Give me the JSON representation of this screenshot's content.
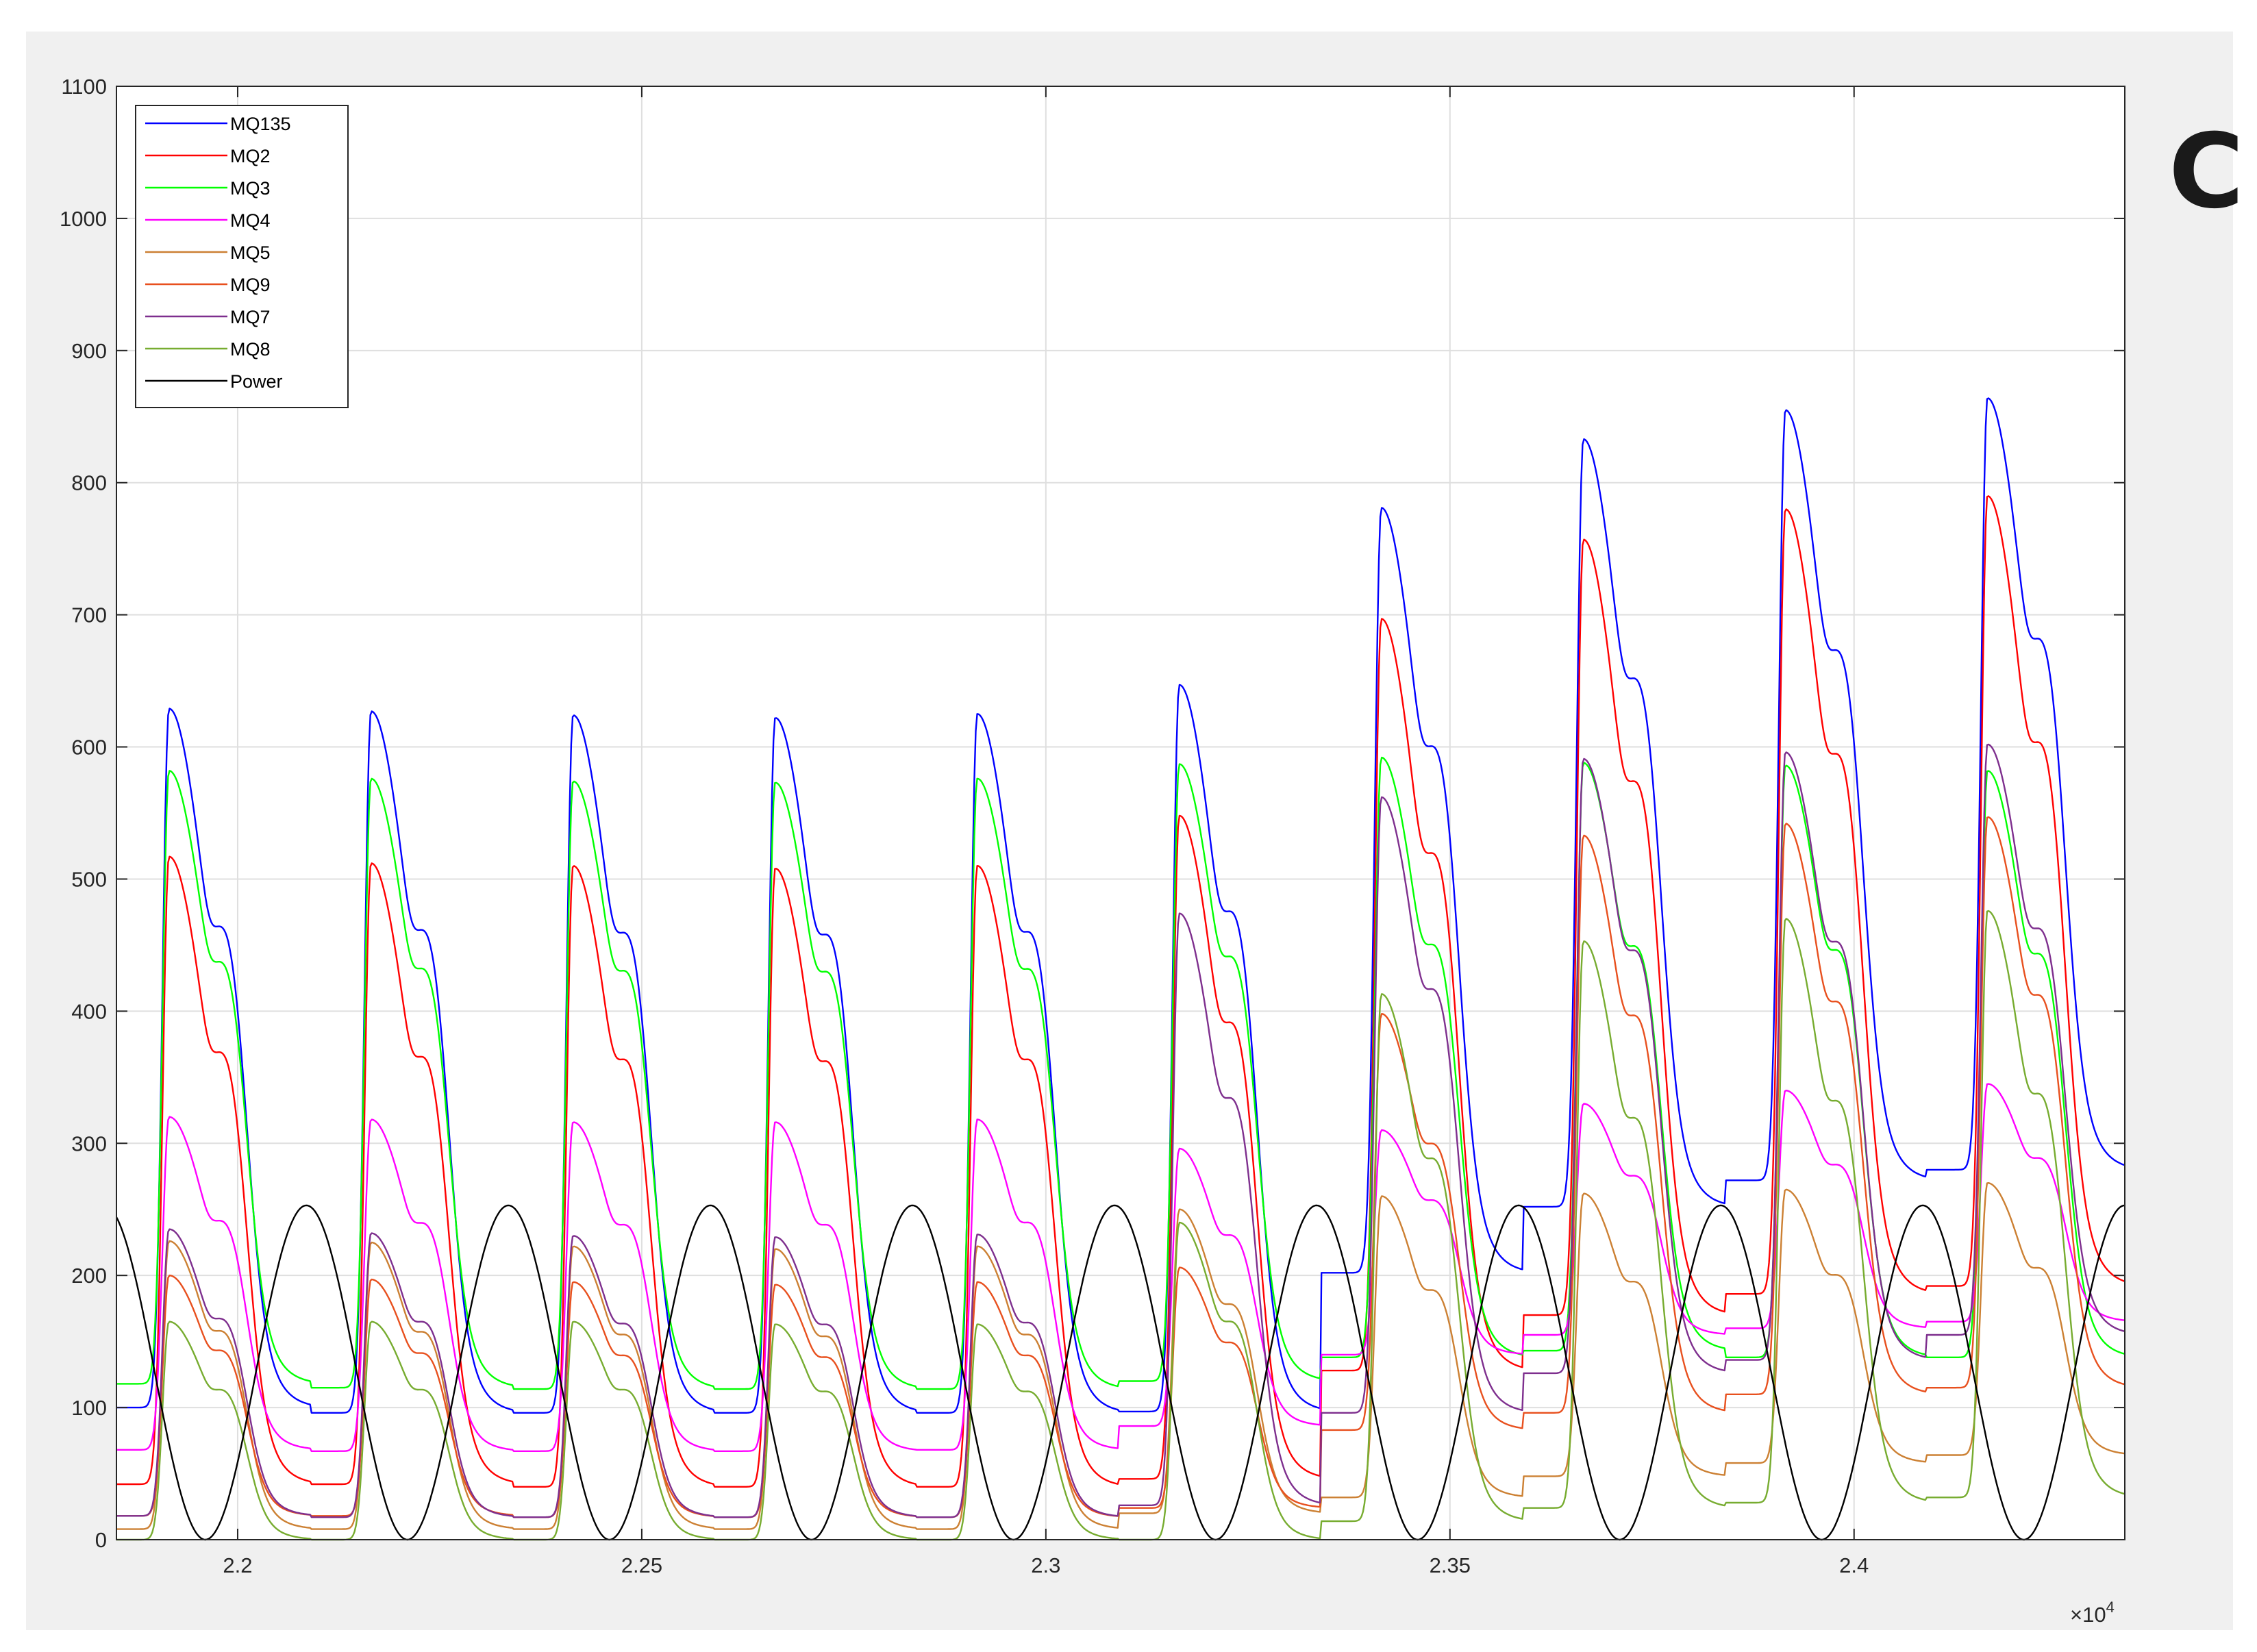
{
  "panel_label": "C",
  "chart_data": {
    "type": "line",
    "title": "",
    "xlabel": "",
    "ylabel": "",
    "x_exponent_label": "×10",
    "x_exponent_power": "4",
    "xlim": [
      2.185,
      2.4335
    ],
    "ylim": [
      0,
      1100
    ],
    "grid": true,
    "legend_position": "top-left",
    "xticks": [
      2.2,
      2.25,
      2.3,
      2.35,
      2.4
    ],
    "xtick_labels": [
      "2.2",
      "2.25",
      "2.3",
      "2.35",
      "2.4"
    ],
    "yticks": [
      0,
      100,
      200,
      300,
      400,
      500,
      600,
      700,
      800,
      900,
      1000,
      1100
    ],
    "ytick_labels": [
      "0",
      "100",
      "200",
      "300",
      "400",
      "500",
      "600",
      "700",
      "800",
      "900",
      "1000",
      "1100"
    ],
    "cycle_period": 0.025,
    "first_peak_x": 2.1915,
    "series": [
      {
        "name": "MQ135",
        "color": "#0000ff",
        "approx_peaks": [
          629,
          627,
          624,
          622,
          625,
          647,
          781,
          833,
          855,
          864
        ],
        "approx_troughs": [
          100,
          96,
          96,
          96,
          96,
          97,
          202,
          252,
          272,
          280
        ]
      },
      {
        "name": "MQ2",
        "color": "#ff0000",
        "approx_peaks": [
          517,
          512,
          510,
          508,
          510,
          548,
          697,
          757,
          780,
          790
        ],
        "approx_troughs": [
          42,
          42,
          40,
          40,
          40,
          46,
          128,
          170,
          186,
          192
        ]
      },
      {
        "name": "MQ3",
        "color": "#00ff00",
        "approx_peaks": [
          582,
          576,
          574,
          573,
          576,
          587,
          592,
          588,
          586,
          582
        ],
        "approx_troughs": [
          118,
          115,
          114,
          114,
          114,
          120,
          138,
          143,
          138,
          138
        ]
      },
      {
        "name": "MQ4",
        "color": "#ff00ff",
        "approx_peaks": [
          320,
          318,
          316,
          316,
          318,
          296,
          310,
          330,
          340,
          345
        ],
        "approx_troughs": [
          68,
          67,
          67,
          67,
          68,
          86,
          140,
          155,
          160,
          165
        ]
      },
      {
        "name": "MQ5",
        "color": "#cc8033",
        "approx_peaks": [
          226,
          225,
          222,
          220,
          222,
          250,
          260,
          262,
          265,
          270
        ],
        "approx_troughs": [
          8,
          8,
          8,
          8,
          8,
          20,
          32,
          48,
          58,
          64
        ]
      },
      {
        "name": "MQ9",
        "color": "#e8501e",
        "approx_peaks": [
          200,
          197,
          195,
          193,
          195,
          206,
          398,
          533,
          542,
          547
        ],
        "approx_troughs": [
          18,
          18,
          17,
          17,
          17,
          24,
          83,
          96,
          110,
          115
        ]
      },
      {
        "name": "MQ7",
        "color": "#7e2f8e",
        "approx_peaks": [
          235,
          232,
          230,
          229,
          231,
          474,
          562,
          591,
          596,
          602
        ],
        "approx_troughs": [
          18,
          17,
          17,
          17,
          17,
          26,
          96,
          126,
          136,
          155
        ]
      },
      {
        "name": "MQ8",
        "color": "#77ac30",
        "approx_peaks": [
          165,
          165,
          165,
          163,
          163,
          240,
          413,
          453,
          470,
          476
        ],
        "approx_troughs": [
          0,
          0,
          0,
          0,
          0,
          0,
          14,
          24,
          28,
          32
        ]
      },
      {
        "name": "Power",
        "color": "#000000",
        "peak": 253,
        "trough": 0,
        "peak_x": [
          2.2085,
          2.2335,
          2.2585,
          2.2835,
          2.3085,
          2.3335,
          2.3585,
          2.3835,
          2.4085
        ]
      }
    ]
  }
}
